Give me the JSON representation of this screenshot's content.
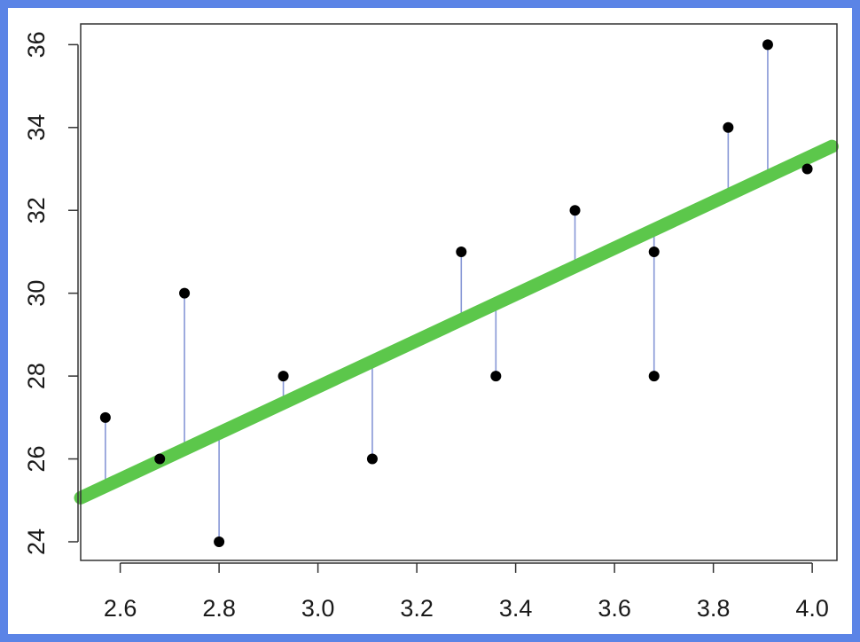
{
  "chart_data": {
    "type": "scatter",
    "title": "",
    "xlabel": "",
    "ylabel": "",
    "xlim": [
      2.52,
      4.05
    ],
    "ylim": [
      23.55,
      36.5
    ],
    "x_ticks": [
      2.6,
      2.8,
      3.0,
      3.2,
      3.4,
      3.6,
      3.8,
      4.0
    ],
    "x_tick_labels": [
      "2.6",
      "2.8",
      "3.0",
      "3.2",
      "3.4",
      "3.6",
      "3.8",
      "4.0"
    ],
    "y_ticks": [
      24,
      26,
      28,
      30,
      32,
      34,
      36
    ],
    "y_tick_labels": [
      "24",
      "26",
      "28",
      "30",
      "32",
      "34",
      "36"
    ],
    "grid": false,
    "points": [
      {
        "x": 2.57,
        "y": 27
      },
      {
        "x": 2.68,
        "y": 26
      },
      {
        "x": 2.73,
        "y": 30
      },
      {
        "x": 2.8,
        "y": 24
      },
      {
        "x": 2.93,
        "y": 28
      },
      {
        "x": 3.11,
        "y": 26
      },
      {
        "x": 3.29,
        "y": 31
      },
      {
        "x": 3.36,
        "y": 28
      },
      {
        "x": 3.52,
        "y": 32
      },
      {
        "x": 3.68,
        "y": 31
      },
      {
        "x": 3.68,
        "y": 28
      },
      {
        "x": 3.83,
        "y": 34
      },
      {
        "x": 3.91,
        "y": 36
      },
      {
        "x": 3.99,
        "y": 33
      }
    ],
    "regression_line": {
      "slope": 5.58,
      "intercept": 11.0,
      "x_range": [
        2.52,
        4.04
      ]
    },
    "colors": {
      "points": "#000000",
      "fit_line": "#5cc74b",
      "residuals": "#8797d6",
      "frame": "#5b84e6"
    }
  }
}
